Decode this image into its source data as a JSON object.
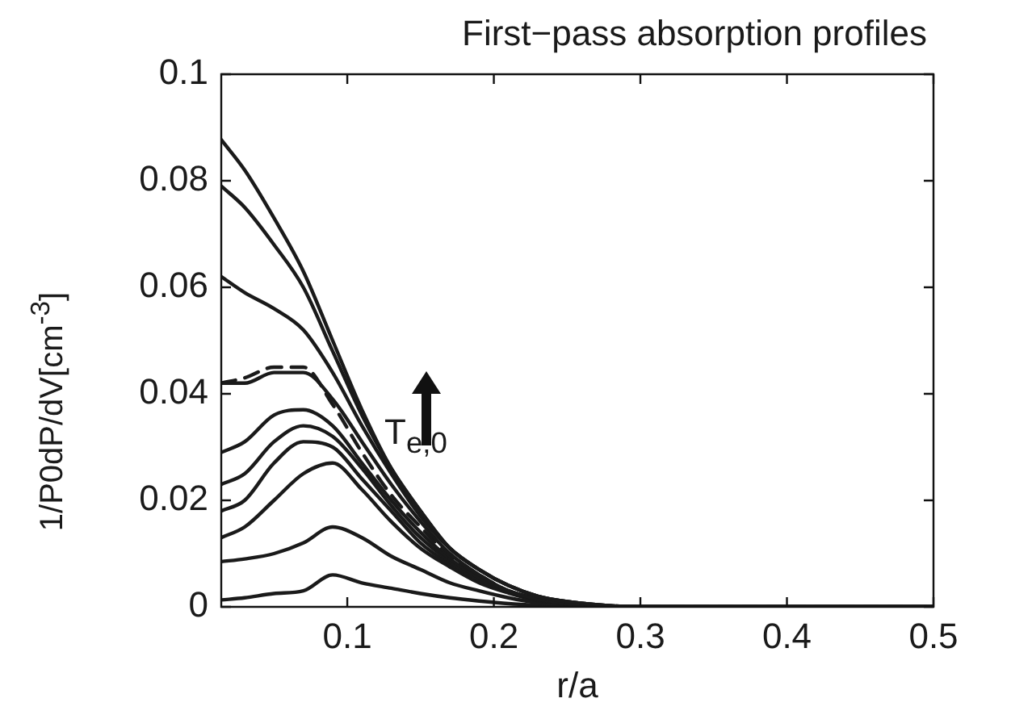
{
  "chart_data": {
    "type": "line",
    "title": "First−pass absorption profiles",
    "xlabel": "r/a",
    "ylabel": "1/P0dP/dV[cm$^{-3}$]",
    "annotations": [
      "T$_{e,0}$"
    ],
    "x": [
      0.014,
      0.03,
      0.05,
      0.07,
      0.09,
      0.11,
      0.13,
      0.15,
      0.17,
      0.19,
      0.21,
      0.23,
      0.25,
      0.3,
      0.4,
      0.5
    ],
    "xlim": [
      0.014,
      0.5
    ],
    "xticks": [
      0.1,
      0.2,
      0.3,
      0.4,
      0.5
    ],
    "ylim": [
      0,
      0.1
    ],
    "yticks": [
      0,
      0.02,
      0.04,
      0.06,
      0.08,
      0.1
    ],
    "grid": false,
    "legend": false,
    "marker": "none",
    "series": [
      {
        "color": "#1a1a1a",
        "line_style": "solid",
        "values": [
          0.0877,
          0.082,
          0.073,
          0.063,
          0.05,
          0.037,
          0.026,
          0.018,
          0.011,
          0.007,
          0.004,
          0.002,
          0.001,
          0,
          0,
          0
        ]
      },
      {
        "color": "#1a1a1a",
        "line_style": "solid",
        "values": [
          0.079,
          0.075,
          0.068,
          0.06,
          0.048,
          0.036,
          0.026,
          0.018,
          0.011,
          0.007,
          0.004,
          0.002,
          0.001,
          0,
          0,
          0
        ]
      },
      {
        "color": "#1a1a1a",
        "line_style": "solid",
        "values": [
          0.062,
          0.059,
          0.056,
          0.052,
          0.044,
          0.034,
          0.025,
          0.017,
          0.011,
          0.007,
          0.004,
          0.002,
          0.001,
          0,
          0,
          0
        ]
      },
      {
        "color": "#1a1a1a",
        "line_style": "solid",
        "values": [
          0.042,
          0.042,
          0.044,
          0.044,
          0.039,
          0.031,
          0.023,
          0.016,
          0.01,
          0.006,
          0.003,
          0.0015,
          0.0007,
          0,
          0,
          0
        ]
      },
      {
        "color": "#1a1a1a",
        "line_style": "dashed",
        "values": [
          0.042,
          0.043,
          0.045,
          0.045,
          0.038,
          0.029,
          0.021,
          0.015,
          0.0095,
          0.006,
          0.003,
          0.0015,
          0.0007,
          0,
          0,
          0
        ]
      },
      {
        "color": "#1a1a1a",
        "line_style": "solid",
        "values": [
          0.029,
          0.031,
          0.036,
          0.037,
          0.034,
          0.027,
          0.02,
          0.014,
          0.009,
          0.0055,
          0.003,
          0.0015,
          0.0007,
          0,
          0,
          0
        ]
      },
      {
        "color": "#1a1a1a",
        "line_style": "solid",
        "values": [
          0.023,
          0.025,
          0.031,
          0.034,
          0.032,
          0.026,
          0.019,
          0.013,
          0.0085,
          0.005,
          0.003,
          0.0014,
          0.0006,
          0,
          0,
          0
        ]
      },
      {
        "color": "#1a1a1a",
        "line_style": "solid",
        "values": [
          0.018,
          0.02,
          0.027,
          0.031,
          0.03,
          0.024,
          0.018,
          0.012,
          0.008,
          0.005,
          0.0028,
          0.0013,
          0.0006,
          0,
          0,
          0
        ]
      },
      {
        "color": "#1a1a1a",
        "line_style": "solid",
        "values": [
          0.013,
          0.015,
          0.02,
          0.025,
          0.027,
          0.022,
          0.016,
          0.011,
          0.0075,
          0.0045,
          0.0026,
          0.0012,
          0.0005,
          0,
          0,
          0
        ]
      },
      {
        "color": "#1a1a1a",
        "line_style": "solid",
        "values": [
          0.0085,
          0.009,
          0.01,
          0.012,
          0.015,
          0.013,
          0.0095,
          0.007,
          0.0045,
          0.003,
          0.0017,
          0.0008,
          0.0004,
          0,
          0,
          0
        ]
      },
      {
        "color": "#1a1a1a",
        "line_style": "solid",
        "values": [
          0.0013,
          0.0017,
          0.0025,
          0.003,
          0.006,
          0.0045,
          0.0035,
          0.0025,
          0.0017,
          0.0011,
          0.0006,
          0.0003,
          0.0001,
          0,
          0,
          0
        ]
      }
    ]
  }
}
